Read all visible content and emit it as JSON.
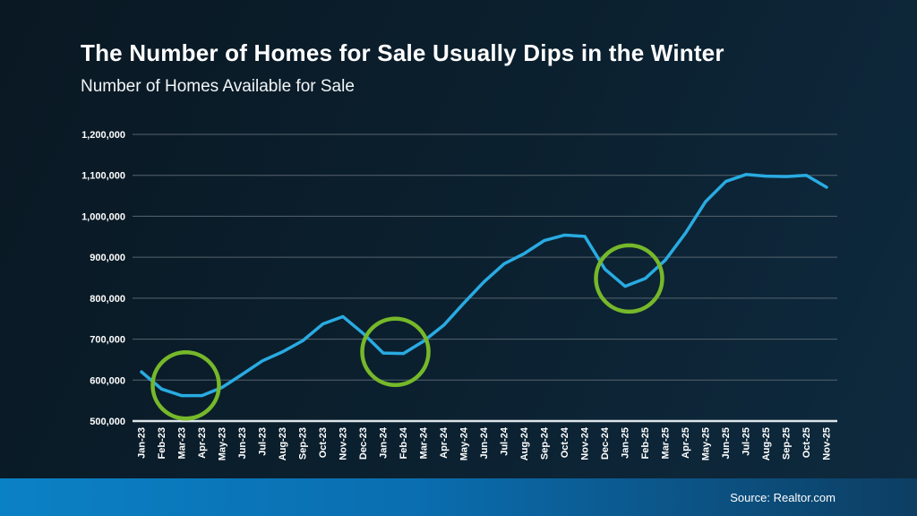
{
  "header": {
    "title": "The Number of Homes for Sale Usually Dips in the Winter",
    "subtitle": "Number of Homes Available for Sale"
  },
  "footer": {
    "source": "Source: Realtor.com"
  },
  "colors": {
    "text": "#ffffff",
    "line": "#29abe2",
    "annotation": "#76b82a",
    "grid": "#56646e",
    "axis": "#dce5e9",
    "footer_left": "#0b81c5",
    "footer_mid": "#0a6eb0",
    "footer_right": "#0d3e63"
  },
  "chart_data": {
    "type": "line",
    "title": "Number of Homes Available for Sale",
    "x": [
      "Jan-23",
      "Feb-23",
      "Mar-23",
      "Apr-23",
      "May-23",
      "Jun-23",
      "Jul-23",
      "Aug-23",
      "Sep-23",
      "Oct-23",
      "Nov-23",
      "Dec-23",
      "Jan-24",
      "Feb-24",
      "Mar-24",
      "Apr-24",
      "May-24",
      "Jun-24",
      "Jul-24",
      "Aug-24",
      "Sep-24",
      "Oct-24",
      "Nov-24",
      "Dec-24",
      "Jan-25",
      "Feb-25",
      "Mar-25",
      "Apr-25",
      "May-25",
      "Jun-25",
      "Jul-25",
      "Aug-25",
      "Sep-25",
      "Oct-25",
      "Nov-25"
    ],
    "series": [
      {
        "name": "Number of Homes Available for Sale",
        "values": [
          620000,
          578000,
          562000,
          562000,
          582000,
          614000,
          647000,
          669000,
          696000,
          737000,
          755000,
          714000,
          666000,
          665000,
          695000,
          734000,
          788000,
          840000,
          884000,
          909000,
          941000,
          954000,
          951000,
          871000,
          829000,
          848000,
          893000,
          959000,
          1036000,
          1085000,
          1102000,
          1098000,
          1097000,
          1100000,
          1071000
        ]
      }
    ],
    "ylim": [
      500000,
      1200000
    ],
    "ytick_interval": 100000,
    "ytick_labels": [
      "500,000",
      "600,000",
      "700,000",
      "800,000",
      "900,000",
      "1,000,000",
      "1,100,000",
      "1,200,000"
    ],
    "grid": true,
    "legend": false,
    "annotations": [
      {
        "label": "winter-dip-2023",
        "x_index": 2.2,
        "value": 587000,
        "radius_px": 37
      },
      {
        "label": "winter-dip-2024",
        "x_index": 12.6,
        "value": 669000,
        "radius_px": 37
      },
      {
        "label": "winter-dip-2025",
        "x_index": 24.2,
        "value": 848000,
        "radius_px": 37
      }
    ]
  }
}
